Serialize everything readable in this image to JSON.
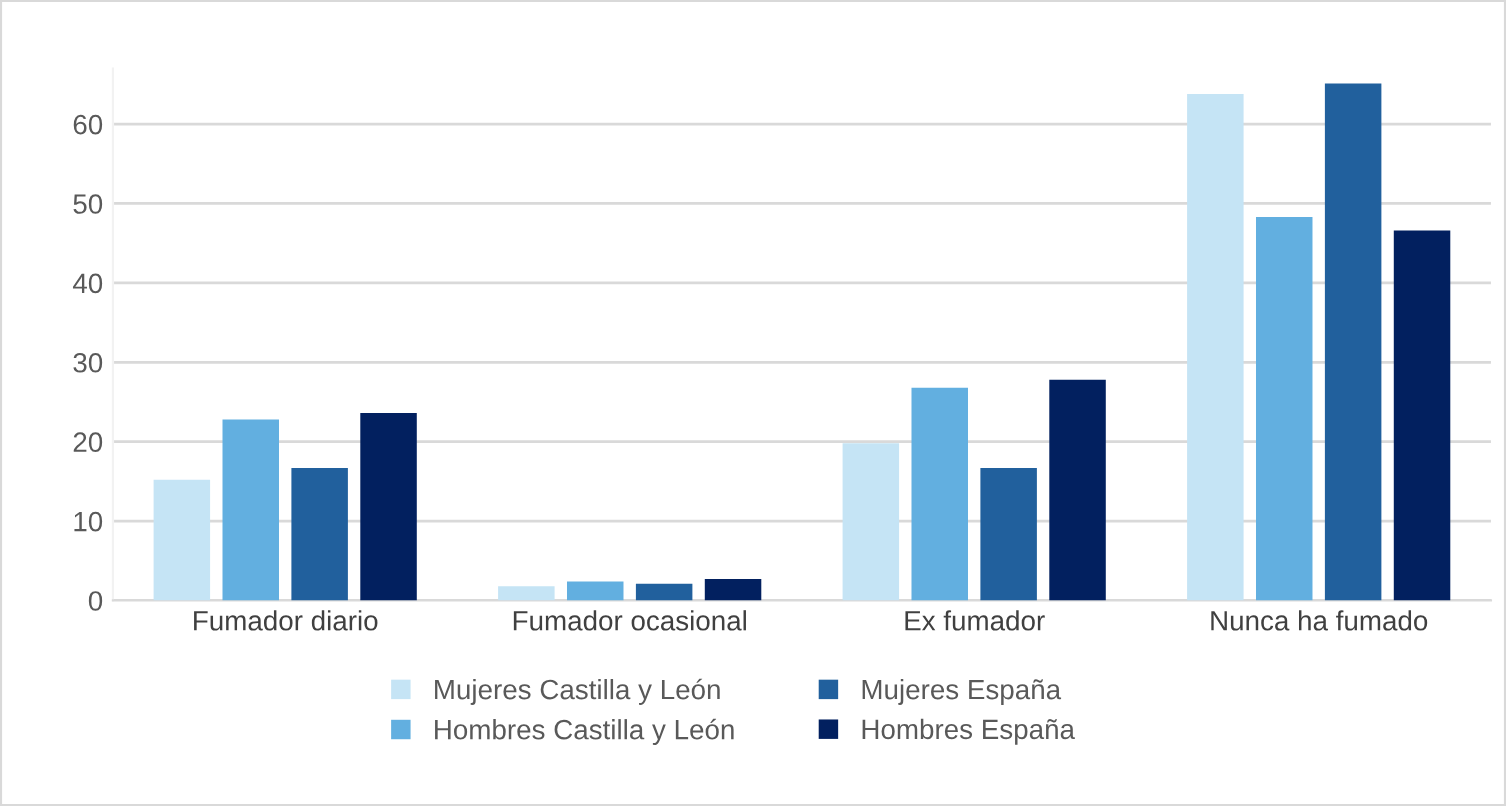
{
  "chart_data": {
    "type": "bar",
    "categories": [
      "Fumador diario",
      "Fumador ocasional",
      "Ex fumador",
      "Nunca ha fumado"
    ],
    "series": [
      {
        "name": "Mujeres Castilla y León",
        "color": "#c5e4f5",
        "values": [
          15.2,
          1.8,
          19.8,
          63.8
        ]
      },
      {
        "name": "Hombres Castilla y León",
        "color": "#62afe0",
        "values": [
          22.8,
          2.4,
          26.8,
          48.3
        ]
      },
      {
        "name": "Mujeres España",
        "color": "#21609d",
        "values": [
          16.7,
          2.1,
          16.7,
          65.1
        ]
      },
      {
        "name": "Hombres España",
        "color": "#02205f",
        "values": [
          23.6,
          2.7,
          27.8,
          46.6
        ]
      }
    ],
    "ylim": [
      0,
      67
    ],
    "yticks": [
      0,
      10,
      20,
      30,
      40,
      50,
      60
    ],
    "grid": "y",
    "legend": "bottom"
  }
}
